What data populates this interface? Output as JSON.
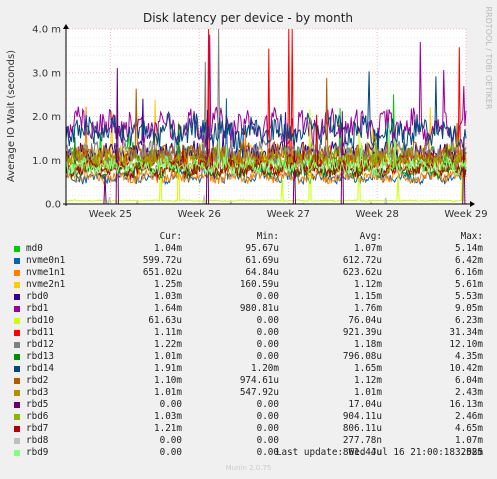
{
  "chart_data": {
    "type": "line",
    "title": "Disk latency per device - by month",
    "ylabel": "Average IO Wait (seconds)",
    "side_label": "RRDTOOL / TOBI OETIKER",
    "ylim": [
      0,
      0.004
    ],
    "yticks": [
      {
        "v": 0,
        "label": "0.0"
      },
      {
        "v": 0.001,
        "label": "1.0 m"
      },
      {
        "v": 0.002,
        "label": "2.0 m"
      },
      {
        "v": 0.003,
        "label": "3.0 m"
      },
      {
        "v": 0.004,
        "label": "4.0 m"
      }
    ],
    "xlim": [
      0,
      1
    ],
    "xticks": [
      {
        "v": 0.111,
        "label": "Week 25"
      },
      {
        "v": 0.333,
        "label": "Week 26"
      },
      {
        "v": 0.556,
        "label": "Week 27"
      },
      {
        "v": 0.778,
        "label": "Week 28"
      },
      {
        "v": 1.0,
        "label": "Week 29"
      }
    ],
    "grid": true,
    "legend_headers": {
      "cur": "Cur:",
      "min": "Min:",
      "avg": "Avg:",
      "max": "Max:"
    },
    "series": [
      {
        "name": "md0",
        "color": "#00cc00",
        "cur": "1.04m",
        "min": "95.67u",
        "avg": "1.07m",
        "max": "5.14m",
        "avg_val": 0.00107,
        "max_val": 0.00514
      },
      {
        "name": "nvme0n1",
        "color": "#0066b3",
        "cur": "599.72u",
        "min": "61.69u",
        "avg": "612.72u",
        "max": "6.42m",
        "avg_val": 0.000613,
        "max_val": 0.00642
      },
      {
        "name": "nvme1n1",
        "color": "#ff8000",
        "cur": "651.02u",
        "min": "64.84u",
        "avg": "623.62u",
        "max": "6.16m",
        "avg_val": 0.000624,
        "max_val": 0.00616
      },
      {
        "name": "nvme2n1",
        "color": "#ffcc00",
        "cur": "1.25m",
        "min": "160.59u",
        "avg": "1.12m",
        "max": "5.61m",
        "avg_val": 0.00112,
        "max_val": 0.00561
      },
      {
        "name": "rbd0",
        "color": "#330099",
        "cur": "1.03m",
        "min": "0.00",
        "avg": "1.15m",
        "max": "5.53m",
        "avg_val": 0.00115,
        "max_val": 0.00553
      },
      {
        "name": "rbd1",
        "color": "#990099",
        "cur": "1.64m",
        "min": "980.81u",
        "avg": "1.76m",
        "max": "9.05m",
        "avg_val": 0.00176,
        "max_val": 0.00905
      },
      {
        "name": "rbd10",
        "color": "#ccff00",
        "cur": "61.63u",
        "min": "0.00",
        "avg": "76.04u",
        "max": "6.23m",
        "avg_val": 7.6e-05,
        "max_val": 0.00623
      },
      {
        "name": "rbd11",
        "color": "#ff0000",
        "cur": "1.11m",
        "min": "0.00",
        "avg": "921.39u",
        "max": "31.34m",
        "avg_val": 0.000921,
        "max_val": 0.03134
      },
      {
        "name": "rbd12",
        "color": "#808080",
        "cur": "1.22m",
        "min": "0.00",
        "avg": "1.18m",
        "max": "12.10m",
        "avg_val": 0.00118,
        "max_val": 0.0121
      },
      {
        "name": "rbd13",
        "color": "#008f00",
        "cur": "1.01m",
        "min": "0.00",
        "avg": "796.08u",
        "max": "4.35m",
        "avg_val": 0.000796,
        "max_val": 0.00435
      },
      {
        "name": "rbd14",
        "color": "#00487d",
        "cur": "1.91m",
        "min": "1.20m",
        "avg": "1.65m",
        "max": "10.42m",
        "avg_val": 0.00165,
        "max_val": 0.01042
      },
      {
        "name": "rbd2",
        "color": "#b35a00",
        "cur": "1.10m",
        "min": "974.61u",
        "avg": "1.12m",
        "max": "6.04m",
        "avg_val": 0.00112,
        "max_val": 0.00604
      },
      {
        "name": "rbd3",
        "color": "#b38f00",
        "cur": "1.01m",
        "min": "547.92u",
        "avg": "1.01m",
        "max": "2.43m",
        "avg_val": 0.00101,
        "max_val": 0.00243
      },
      {
        "name": "rbd5",
        "color": "#6b006b",
        "cur": "0.00",
        "min": "0.00",
        "avg": "17.04u",
        "max": "16.13m",
        "avg_val": 1.7e-05,
        "max_val": 0.01613
      },
      {
        "name": "rbd6",
        "color": "#8fb300",
        "cur": "1.03m",
        "min": "0.00",
        "avg": "904.11u",
        "max": "2.46m",
        "avg_val": 0.000904,
        "max_val": 0.00246
      },
      {
        "name": "rbd7",
        "color": "#b30000",
        "cur": "1.21m",
        "min": "0.00",
        "avg": "806.11u",
        "max": "4.65m",
        "avg_val": 0.000806,
        "max_val": 0.00465
      },
      {
        "name": "rbd8",
        "color": "#bebebe",
        "cur": "0.00",
        "min": "0.00",
        "avg": "277.78n",
        "max": "1.07m",
        "avg_val": 3e-07,
        "max_val": 0.00107
      },
      {
        "name": "rbd9",
        "color": "#80ff80",
        "cur": "0.00",
        "min": "0.00",
        "avg": "861.44u",
        "max": "3.58m",
        "avg_val": 0.000861,
        "max_val": 0.00358
      }
    ]
  },
  "footer": {
    "last_update": "Last update: Wed Jul 16 21:00:18 2025",
    "version": "Munin 2.0.75"
  }
}
